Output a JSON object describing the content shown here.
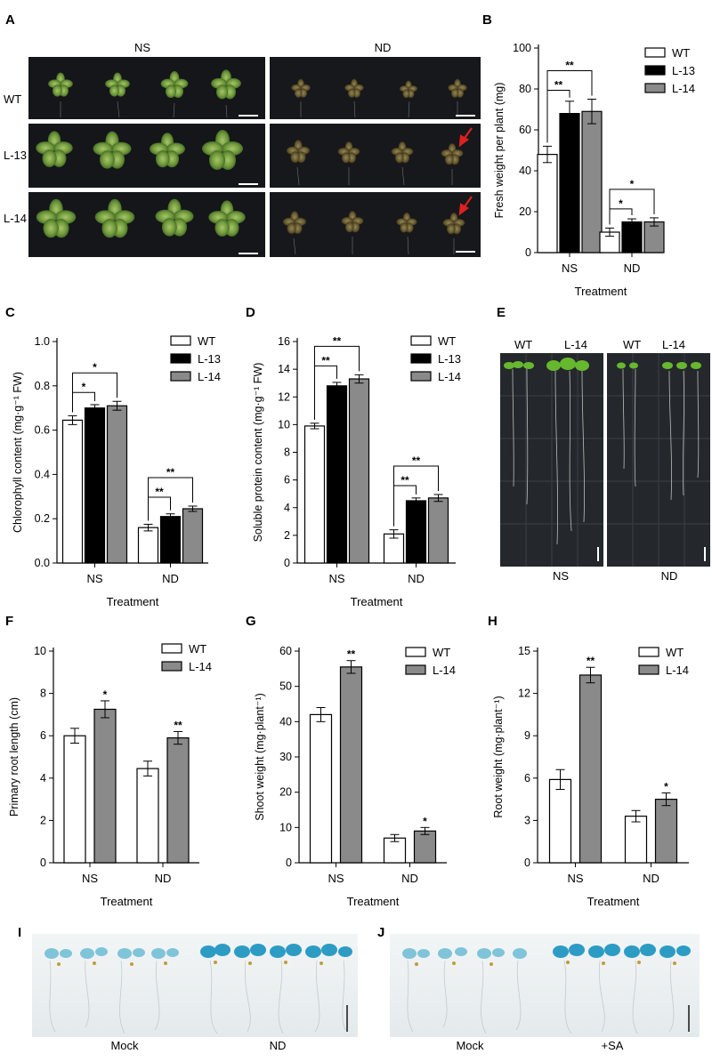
{
  "panels": {
    "A": {
      "label": "A",
      "col_headers": [
        "NS",
        "ND"
      ],
      "row_labels": [
        "WT",
        "L-13",
        "L-14"
      ]
    },
    "B": {
      "label": "B"
    },
    "C": {
      "label": "C"
    },
    "D": {
      "label": "D"
    },
    "E": {
      "label": "E",
      "headers": [
        "WT",
        "L-14",
        "WT",
        "L-14"
      ],
      "bottom_labels": [
        "NS",
        "ND"
      ]
    },
    "F": {
      "label": "F"
    },
    "G": {
      "label": "G"
    },
    "H": {
      "label": "H"
    },
    "I": {
      "label": "I",
      "bottom_labels": [
        "Mock",
        "ND"
      ]
    },
    "J": {
      "label": "J",
      "bottom_labels": [
        "Mock",
        "+SA"
      ]
    }
  },
  "colors": {
    "WT": "#ffffff",
    "L-13": "#000000",
    "L-14": "#8a8a8a",
    "plate": "#0c0d0f",
    "gus_blue": "#3fa9c9"
  },
  "chart_data": [
    {
      "id": "B",
      "type": "bar",
      "categories": [
        "NS",
        "ND"
      ],
      "series": [
        {
          "name": "WT",
          "values": [
            48,
            10
          ],
          "errors": [
            4,
            2
          ]
        },
        {
          "name": "L-13",
          "values": [
            68,
            15
          ],
          "errors": [
            6,
            1.5
          ]
        },
        {
          "name": "L-14",
          "values": [
            69,
            15
          ],
          "errors": [
            6,
            2
          ]
        }
      ],
      "xlabel": "Treatment",
      "ylabel": "Fresh weight per plant (mg)",
      "ylim": [
        0,
        100
      ],
      "yticks": [
        "0",
        "20",
        "40",
        "60",
        "80",
        "100"
      ],
      "legend": "top-right",
      "significance": [
        {
          "group": "NS",
          "from": "WT",
          "to": "L-13",
          "label": "**"
        },
        {
          "group": "NS",
          "from": "WT",
          "to": "L-14",
          "label": "**"
        },
        {
          "group": "ND",
          "from": "WT",
          "to": "L-13",
          "label": "*"
        },
        {
          "group": "ND",
          "from": "WT",
          "to": "L-14",
          "label": "*"
        }
      ]
    },
    {
      "id": "C",
      "type": "bar",
      "categories": [
        "NS",
        "ND"
      ],
      "series": [
        {
          "name": "WT",
          "values": [
            0.645,
            0.16
          ],
          "errors": [
            0.02,
            0.015
          ]
        },
        {
          "name": "L-13",
          "values": [
            0.7,
            0.21
          ],
          "errors": [
            0.015,
            0.012
          ]
        },
        {
          "name": "L-14",
          "values": [
            0.71,
            0.245
          ],
          "errors": [
            0.02,
            0.012
          ]
        }
      ],
      "xlabel": "Treatment",
      "ylabel": "Chlorophyll content (mg·g⁻¹ FW)",
      "ylim": [
        0,
        1.0
      ],
      "yticks": [
        "0.0",
        "0.2",
        "0.4",
        "0.6",
        "0.8",
        "1.0"
      ],
      "legend": "top-right",
      "significance": [
        {
          "group": "NS",
          "from": "WT",
          "to": "L-13",
          "label": "*"
        },
        {
          "group": "NS",
          "from": "WT",
          "to": "L-14",
          "label": "*"
        },
        {
          "group": "ND",
          "from": "WT",
          "to": "L-13",
          "label": "**"
        },
        {
          "group": "ND",
          "from": "WT",
          "to": "L-14",
          "label": "**"
        }
      ]
    },
    {
      "id": "D",
      "type": "bar",
      "categories": [
        "NS",
        "ND"
      ],
      "series": [
        {
          "name": "WT",
          "values": [
            9.9,
            2.1
          ],
          "errors": [
            0.2,
            0.3
          ]
        },
        {
          "name": "L-13",
          "values": [
            12.8,
            4.5
          ],
          "errors": [
            0.25,
            0.2
          ]
        },
        {
          "name": "L-14",
          "values": [
            13.3,
            4.7
          ],
          "errors": [
            0.3,
            0.25
          ]
        }
      ],
      "xlabel": "Treatment",
      "ylabel": "Soluble protein content (mg·g⁻¹ FW)",
      "ylim": [
        0,
        16
      ],
      "yticks": [
        "0",
        "2",
        "4",
        "6",
        "8",
        "10",
        "12",
        "14",
        "16"
      ],
      "legend": "top-right",
      "significance": [
        {
          "group": "NS",
          "from": "WT",
          "to": "L-13",
          "label": "**"
        },
        {
          "group": "NS",
          "from": "WT",
          "to": "L-14",
          "label": "**"
        },
        {
          "group": "ND",
          "from": "WT",
          "to": "L-13",
          "label": "**"
        },
        {
          "group": "ND",
          "from": "WT",
          "to": "L-14",
          "label": "**"
        }
      ]
    },
    {
      "id": "F",
      "type": "bar",
      "categories": [
        "NS",
        "ND"
      ],
      "series": [
        {
          "name": "WT",
          "values": [
            6.0,
            4.45
          ],
          "errors": [
            0.35,
            0.35
          ]
        },
        {
          "name": "L-14",
          "values": [
            7.25,
            5.9
          ],
          "errors": [
            0.4,
            0.3
          ]
        }
      ],
      "xlabel": "Treatment",
      "ylabel": "Primary root length (cm)",
      "ylim": [
        0,
        10
      ],
      "yticks": [
        "0",
        "2",
        "4",
        "6",
        "8",
        "10"
      ],
      "legend": "top-right",
      "stars": [
        {
          "group": "NS",
          "series": "L-14",
          "label": "*"
        },
        {
          "group": "ND",
          "series": "L-14",
          "label": "**"
        }
      ]
    },
    {
      "id": "G",
      "type": "bar",
      "categories": [
        "NS",
        "ND"
      ],
      "series": [
        {
          "name": "WT",
          "values": [
            42,
            7
          ],
          "errors": [
            2,
            1
          ]
        },
        {
          "name": "L-14",
          "values": [
            55.5,
            9
          ],
          "errors": [
            1.8,
            1
          ]
        }
      ],
      "xlabel": "Treatment",
      "ylabel": "Shoot weight (mg·plant⁻¹)",
      "ylim": [
        0,
        60
      ],
      "yticks": [
        "0",
        "10",
        "20",
        "30",
        "40",
        "50",
        "60"
      ],
      "legend": "top-right",
      "stars": [
        {
          "group": "NS",
          "series": "L-14",
          "label": "**"
        },
        {
          "group": "ND",
          "series": "L-14",
          "label": "*"
        }
      ]
    },
    {
      "id": "H",
      "type": "bar",
      "categories": [
        "NS",
        "ND"
      ],
      "series": [
        {
          "name": "WT",
          "values": [
            5.9,
            3.3
          ],
          "errors": [
            0.7,
            0.4
          ]
        },
        {
          "name": "L-14",
          "values": [
            13.3,
            4.5
          ],
          "errors": [
            0.55,
            0.45
          ]
        }
      ],
      "xlabel": "Treatment",
      "ylabel": "Root weight (mg·plant⁻¹)",
      "ylim": [
        0,
        15
      ],
      "yticks": [
        "0",
        "3",
        "6",
        "9",
        "12",
        "15"
      ],
      "legend": "top-right",
      "stars": [
        {
          "group": "NS",
          "series": "L-14",
          "label": "**"
        },
        {
          "group": "ND",
          "series": "L-14",
          "label": "*"
        }
      ]
    }
  ]
}
